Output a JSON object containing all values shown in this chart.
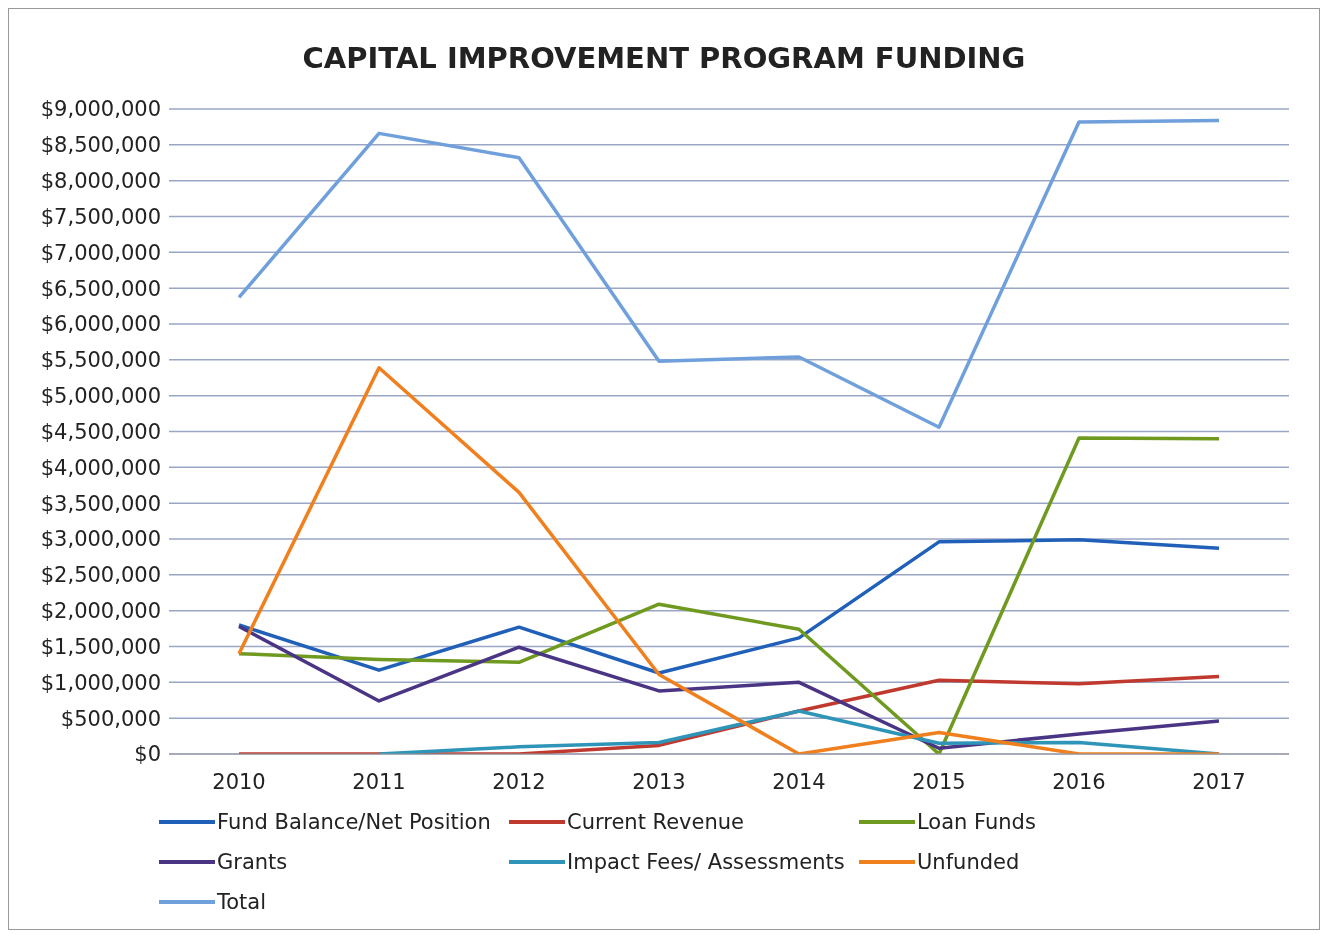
{
  "chart_data": {
    "type": "line",
    "title": "CAPITAL IMPROVEMENT PROGRAM FUNDING",
    "categories": [
      "2010",
      "2011",
      "2012",
      "2013",
      "2014",
      "2015",
      "2016",
      "2017"
    ],
    "series": [
      {
        "name": "Fund Balance/Net Position",
        "color": "#2060b8",
        "values": [
          1800000,
          1170000,
          1770000,
          1130000,
          1620000,
          2960000,
          2990000,
          2870000
        ]
      },
      {
        "name": "Current Revenue",
        "color": "#c0392f",
        "values": [
          0,
          0,
          0,
          120000,
          600000,
          1030000,
          980000,
          1080000
        ]
      },
      {
        "name": "Loan Funds",
        "color": "#6f9a1f",
        "values": [
          1400000,
          1320000,
          1280000,
          2090000,
          1740000,
          0,
          4410000,
          4400000
        ]
      },
      {
        "name": "Grants",
        "color": "#4a3585",
        "values": [
          1780000,
          740000,
          1490000,
          880000,
          1000000,
          80000,
          280000,
          460000
        ]
      },
      {
        "name": "Impact Fees/ Assessments",
        "color": "#2f95b8",
        "values": [
          null,
          0,
          100000,
          160000,
          600000,
          150000,
          160000,
          0
        ]
      },
      {
        "name": "Unfunded",
        "color": "#f07f1e",
        "values": [
          1400000,
          5390000,
          3650000,
          1110000,
          0,
          300000,
          0,
          0
        ]
      },
      {
        "name": "Total",
        "color": "#70a0dc",
        "values": [
          6370000,
          8660000,
          8320000,
          5480000,
          5540000,
          4560000,
          8820000,
          8840000
        ]
      }
    ],
    "ylim": [
      0,
      9000000
    ],
    "yticks": [
      {
        "value": 0,
        "label": "$0"
      },
      {
        "value": 500000,
        "label": "$500,000"
      },
      {
        "value": 1000000,
        "label": "$1,000,000"
      },
      {
        "value": 1500000,
        "label": "$1,500,000"
      },
      {
        "value": 2000000,
        "label": "$2,000,000"
      },
      {
        "value": 2500000,
        "label": "$2,500,000"
      },
      {
        "value": 3000000,
        "label": "$3,000,000"
      },
      {
        "value": 3500000,
        "label": "$3,500,000"
      },
      {
        "value": 4000000,
        "label": "$4,000,000"
      },
      {
        "value": 4500000,
        "label": "$4,500,000"
      },
      {
        "value": 5000000,
        "label": "$5,000,000"
      },
      {
        "value": 5500000,
        "label": "$5,500,000"
      },
      {
        "value": 6000000,
        "label": "$6,000,000"
      },
      {
        "value": 6500000,
        "label": "$6,500,000"
      },
      {
        "value": 7000000,
        "label": "$7,000,000"
      },
      {
        "value": 7500000,
        "label": "$7,500,000"
      },
      {
        "value": 8000000,
        "label": "$8,000,000"
      },
      {
        "value": 8500000,
        "label": "$8,500,000"
      },
      {
        "value": 9000000,
        "label": "$9,000,000"
      }
    ],
    "grid": "y",
    "legend": "bottom",
    "marker": "none",
    "line_style": "solid"
  }
}
